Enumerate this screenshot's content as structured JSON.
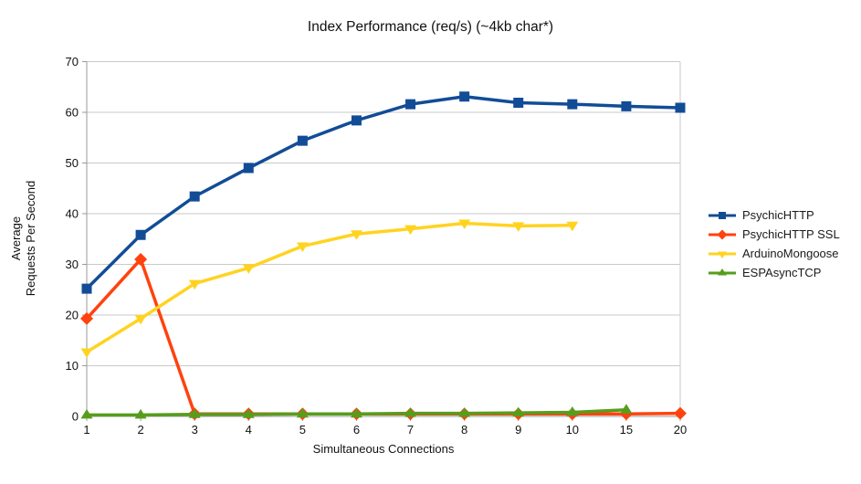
{
  "chart_data": {
    "type": "line",
    "title": "Index Performance (req/s) (~4kb char*)",
    "xlabel": "Simultaneous Connections",
    "ylabel": "Average\nRequests Per Second",
    "categories": [
      "1",
      "2",
      "3",
      "4",
      "5",
      "6",
      "7",
      "8",
      "9",
      "10",
      "15",
      "20"
    ],
    "ylim": [
      0,
      70
    ],
    "yticks": [
      0,
      10,
      20,
      30,
      40,
      50,
      60,
      70
    ],
    "grid": "horizontal",
    "legend_position": "right",
    "series": [
      {
        "name": "PsychicHTTP",
        "color": "#124C96",
        "marker": "square",
        "values": [
          25.2,
          35.8,
          43.4,
          49.0,
          54.4,
          58.4,
          61.6,
          63.1,
          61.9,
          61.6,
          61.2,
          60.9
        ]
      },
      {
        "name": "PsychicHTTP SSL",
        "color": "#FF420E",
        "marker": "diamond",
        "values": [
          19.3,
          31.0,
          0.5,
          0.5,
          0.5,
          0.5,
          0.5,
          0.5,
          0.5,
          0.5,
          0.5,
          0.6
        ]
      },
      {
        "name": "ArduinoMongoose",
        "color": "#FFD320",
        "marker": "triangle-down",
        "values": [
          12.7,
          19.3,
          26.2,
          29.3,
          33.6,
          36.0,
          37.0,
          38.1,
          37.6,
          37.7,
          null,
          null
        ]
      },
      {
        "name": "ESPAsyncTCP",
        "color": "#579D1C",
        "marker": "triangle-up",
        "values": [
          0.3,
          0.3,
          0.4,
          0.4,
          0.5,
          0.5,
          0.6,
          0.6,
          0.7,
          0.8,
          1.3,
          null
        ]
      }
    ]
  }
}
